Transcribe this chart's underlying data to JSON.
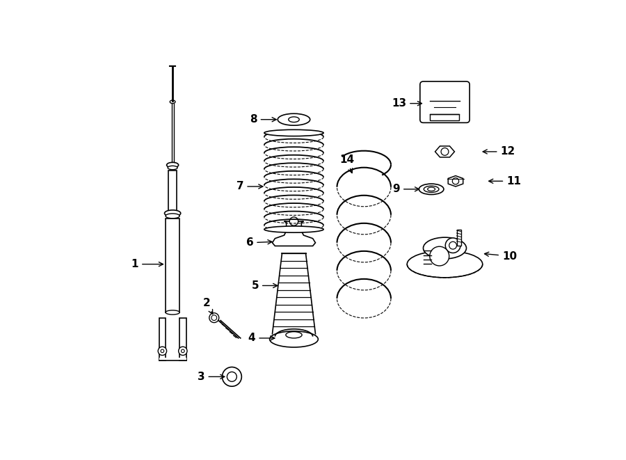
{
  "background_color": "#ffffff",
  "line_color": "#000000",
  "figsize": [
    9.0,
    6.61
  ],
  "dpi": 100
}
